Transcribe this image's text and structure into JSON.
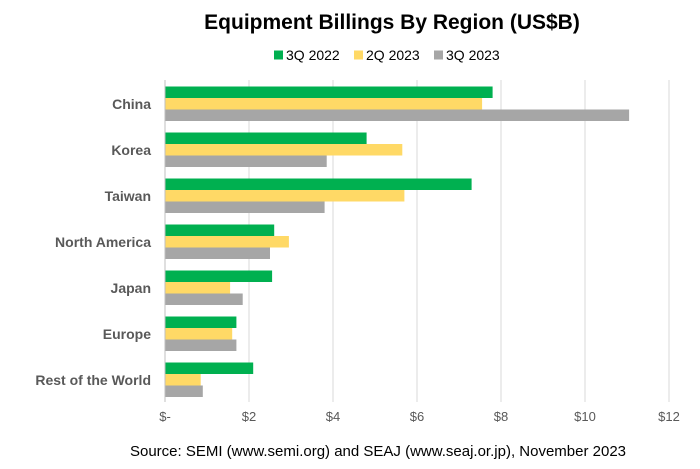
{
  "chart_data": {
    "type": "bar",
    "orientation": "horizontal",
    "title": "Equipment Billings By Region (US$B)",
    "categories": [
      "China",
      "Korea",
      "Taiwan",
      "North America",
      "Japan",
      "Europe",
      "Rest of the World"
    ],
    "series": [
      {
        "name": "3Q 2022",
        "color": "#00b050",
        "values": [
          7.8,
          4.8,
          7.3,
          2.6,
          2.55,
          1.7,
          2.1
        ]
      },
      {
        "name": "2Q 2023",
        "color": "#ffd966",
        "values": [
          7.55,
          5.65,
          5.7,
          2.95,
          1.55,
          1.6,
          0.85
        ]
      },
      {
        "name": "3Q 2023",
        "color": "#a6a6a6",
        "values": [
          11.05,
          3.85,
          3.8,
          2.5,
          1.85,
          1.7,
          0.9
        ]
      }
    ],
    "xlim": [
      0,
      12
    ],
    "xticks": [
      0,
      2,
      4,
      6,
      8,
      10,
      12
    ],
    "xtick_labels": [
      "$-",
      "$2",
      "$4",
      "$6",
      "$8",
      "$10",
      "$12"
    ],
    "xlabel": "",
    "ylabel": "",
    "grid": true,
    "legend_position": "top"
  },
  "source_text": "Source: SEMI (www.semi.org) and SEAJ (www.seaj.or.jp), November 2023"
}
